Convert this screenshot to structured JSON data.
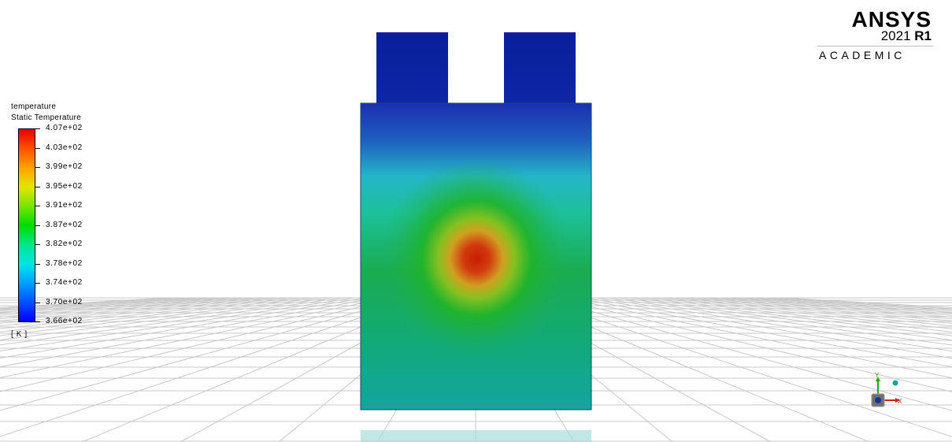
{
  "legend": {
    "title_line1": "temperature",
    "title_line2": "Static Temperature",
    "unit": "[ K ]",
    "ticks": [
      "4.07e+02",
      "4.03e+02",
      "3.99e+02",
      "3.95e+02",
      "3.91e+02",
      "3.87e+02",
      "3.82e+02",
      "3.78e+02",
      "3.74e+02",
      "3.70e+02",
      "3.66e+02"
    ],
    "max": 407,
    "min": 366,
    "colormap": [
      "#0000ff",
      "#0050ff",
      "#00a0ff",
      "#00e6e6",
      "#00e68c",
      "#00dc00",
      "#78e600",
      "#e6e600",
      "#ffa000",
      "#ff5000",
      "#e60000"
    ]
  },
  "logo": {
    "brand": "ANSYS",
    "version_year": "2021",
    "version_release": "R1",
    "edition": "ACADEMIC"
  },
  "triad": {
    "y_label": "Y",
    "x_label": "X"
  },
  "colors": {
    "background": "#ffffff",
    "grid_line": "#c8c8c8",
    "hot_spot": "#c81e00",
    "cold": "#0a1ea8"
  }
}
